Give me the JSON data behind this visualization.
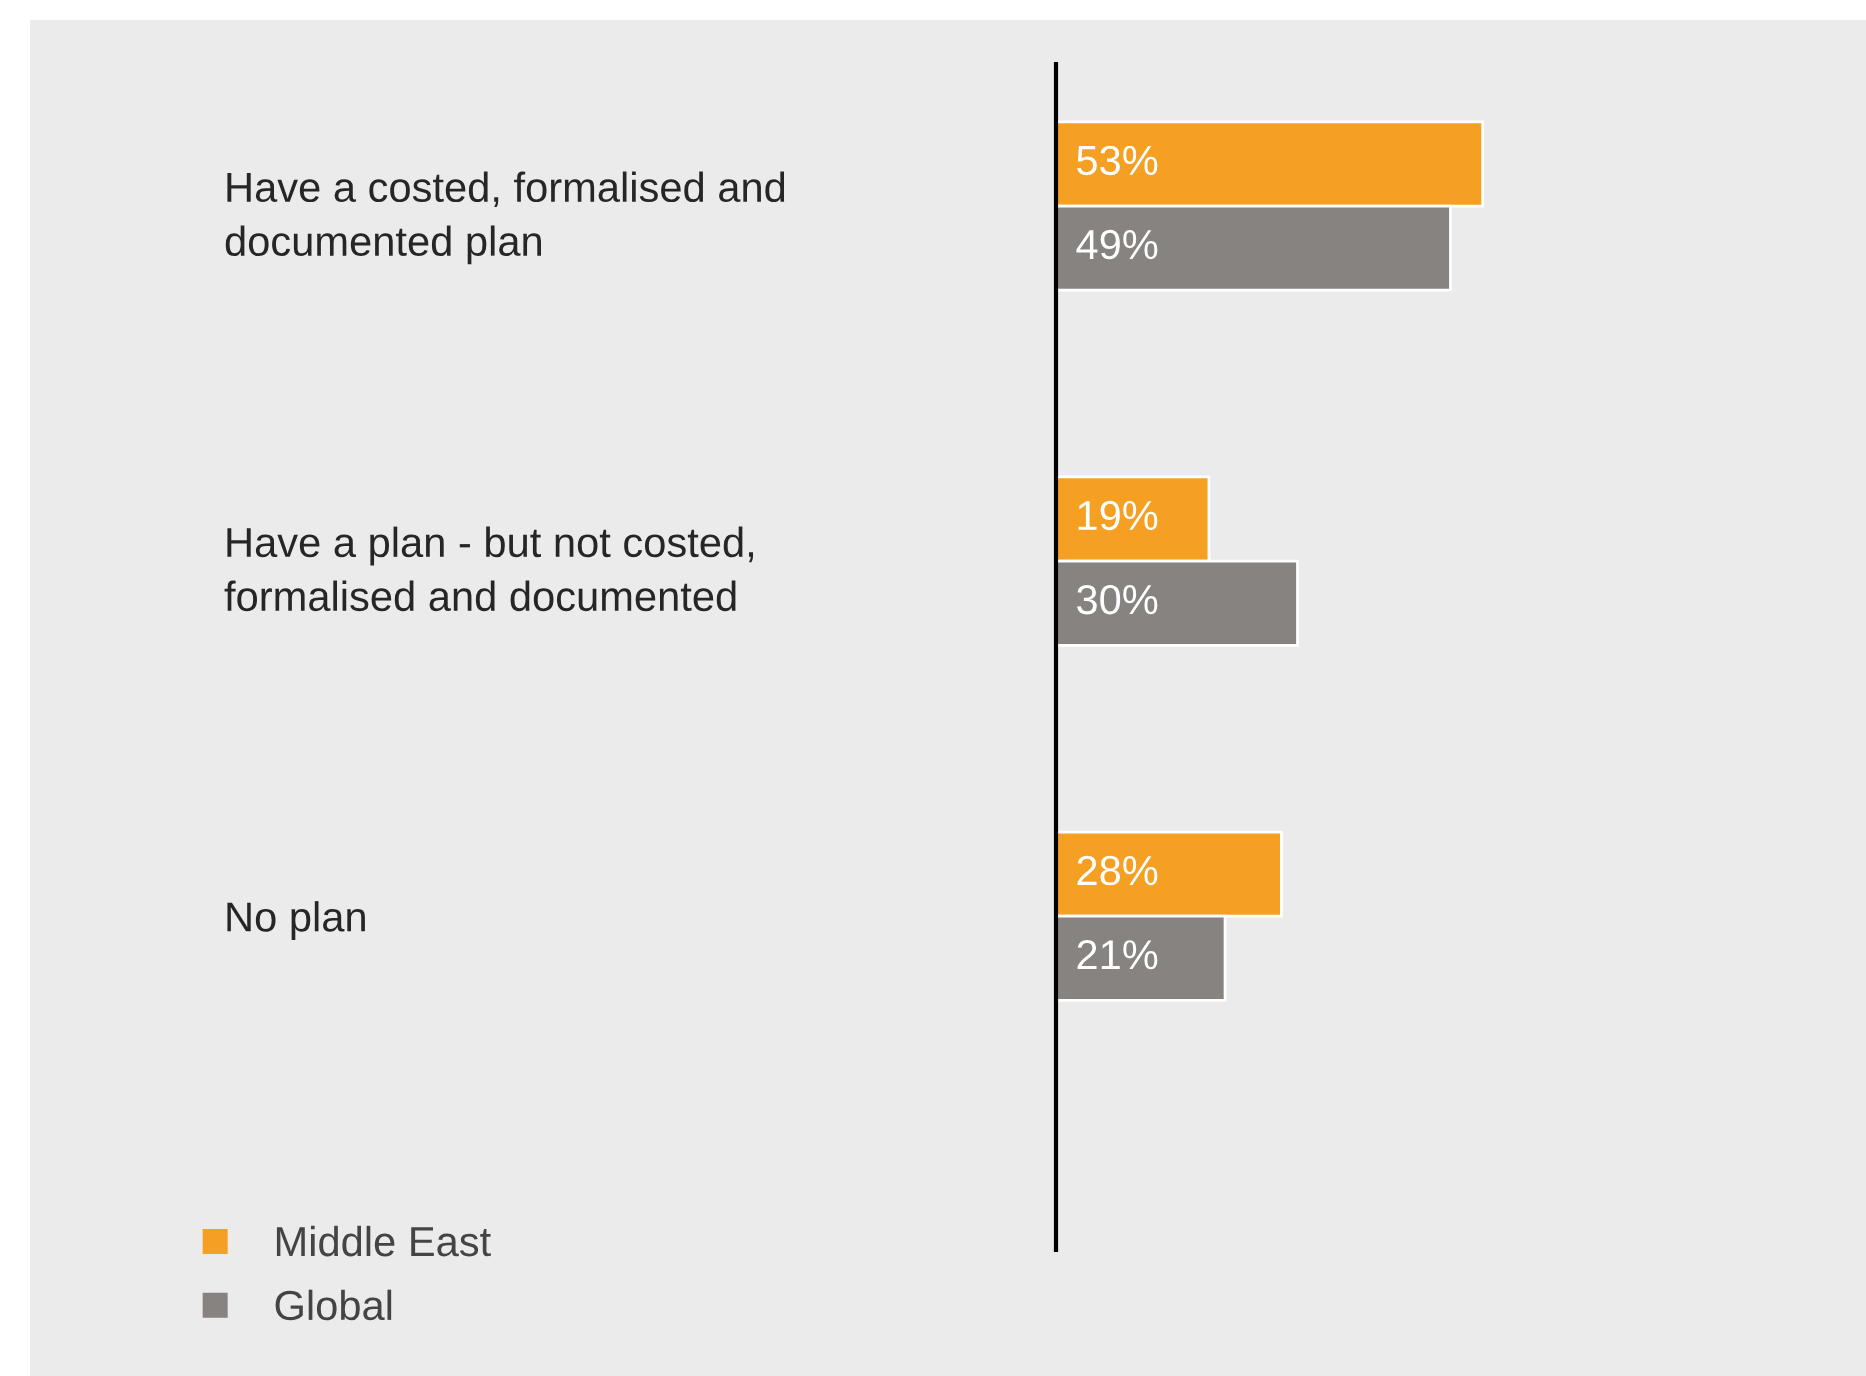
{
  "chart_data": {
    "type": "bar",
    "orientation": "horizontal",
    "categories": [
      "Have a costed, formalised and\ndocumented plan",
      "Have a plan - but not costed,\nformalised and documented",
      "No plan"
    ],
    "series": [
      {
        "name": "Middle East",
        "color": "#f5a023",
        "values": [
          53,
          19,
          28
        ],
        "value_labels": [
          "53%",
          "19%",
          "28%"
        ]
      },
      {
        "name": "Global",
        "color": "#878381",
        "values": [
          49,
          30,
          21
        ],
        "value_labels": [
          "49%",
          "30%",
          "21%"
        ]
      }
    ],
    "legend": "bottom left",
    "grid": false
  }
}
